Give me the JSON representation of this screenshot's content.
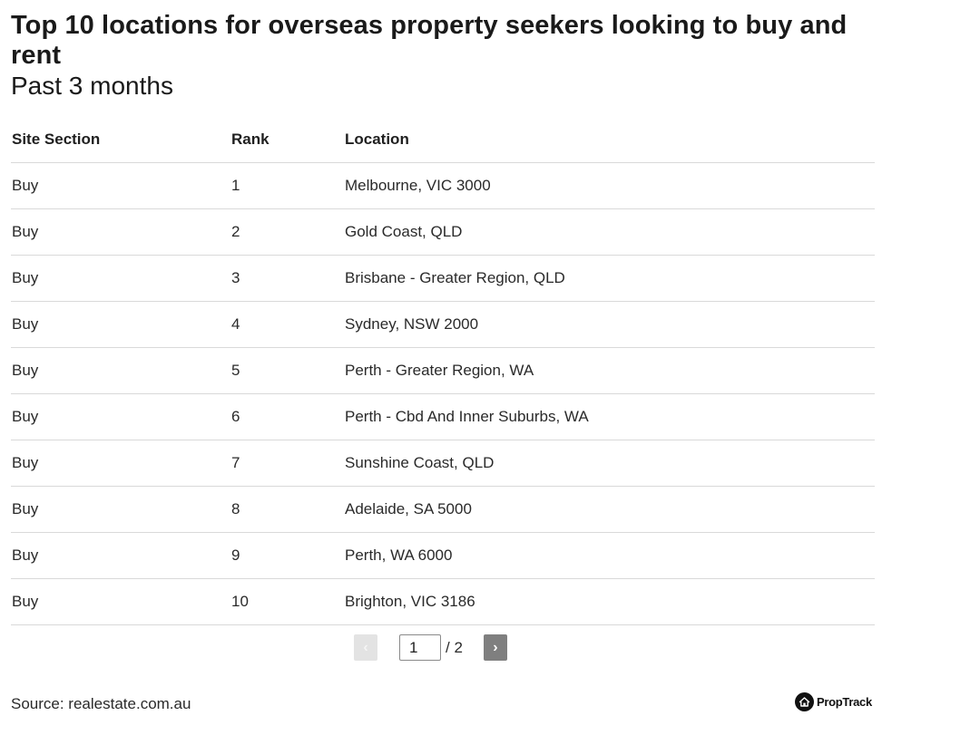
{
  "header": {
    "title": "Top 10 locations for overseas property seekers looking to buy and rent",
    "subtitle": "Past 3 months"
  },
  "table": {
    "columns": [
      "Site Section",
      "Rank",
      "Location"
    ],
    "rows": [
      {
        "section": "Buy",
        "rank": "1",
        "location": "Melbourne, VIC 3000"
      },
      {
        "section": "Buy",
        "rank": "2",
        "location": "Gold Coast, QLD"
      },
      {
        "section": "Buy",
        "rank": "3",
        "location": "Brisbane - Greater Region, QLD"
      },
      {
        "section": "Buy",
        "rank": "4",
        "location": "Sydney, NSW 2000"
      },
      {
        "section": "Buy",
        "rank": "5",
        "location": "Perth - Greater Region, WA"
      },
      {
        "section": "Buy",
        "rank": "6",
        "location": "Perth - Cbd And Inner Suburbs, WA"
      },
      {
        "section": "Buy",
        "rank": "7",
        "location": "Sunshine Coast, QLD"
      },
      {
        "section": "Buy",
        "rank": "8",
        "location": "Adelaide, SA 5000"
      },
      {
        "section": "Buy",
        "rank": "9",
        "location": "Perth, WA 6000"
      },
      {
        "section": "Buy",
        "rank": "10",
        "location": "Brighton, VIC 3186"
      }
    ]
  },
  "pagination": {
    "prev_label": "‹",
    "next_label": "›",
    "current_page": "1",
    "total_label": "/ 2",
    "prev_icon": "chevron-left-icon",
    "next_icon": "chevron-right-icon"
  },
  "footer": {
    "source": "Source: realestate.com.au",
    "logo_text": "PropTrack",
    "logo_icon": "house-icon"
  }
}
